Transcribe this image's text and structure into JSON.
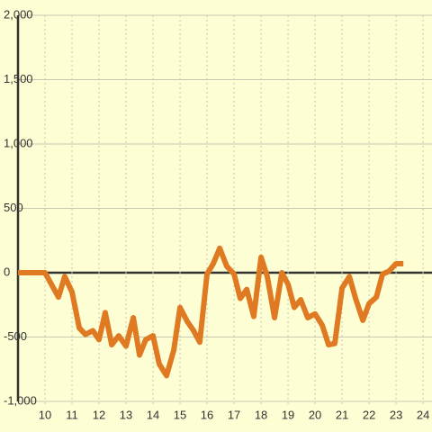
{
  "chart_data": {
    "type": "line",
    "x": [
      9,
      10,
      10.5,
      10.73,
      11,
      11.27,
      11.5,
      11.77,
      12,
      12.23,
      12.47,
      12.73,
      13,
      13.27,
      13.5,
      13.73,
      14,
      14.23,
      14.5,
      14.77,
      15,
      15.27,
      15.5,
      15.73,
      16,
      16.23,
      16.47,
      16.73,
      17,
      17.23,
      17.47,
      17.73,
      18,
      18.23,
      18.5,
      18.77,
      19,
      19.23,
      19.47,
      19.73,
      20,
      20.27,
      20.5,
      20.73,
      21,
      21.27,
      21.5,
      21.77,
      22,
      22.27,
      22.5,
      22.73,
      23,
      23.27
    ],
    "values": [
      0,
      0,
      -190,
      -30,
      -150,
      -430,
      -480,
      -450,
      -520,
      -310,
      -560,
      -490,
      -570,
      -350,
      -640,
      -520,
      -490,
      -710,
      -800,
      -600,
      -270,
      -380,
      -450,
      -540,
      -10,
      70,
      190,
      50,
      -10,
      -200,
      -130,
      -340,
      120,
      -30,
      -350,
      0,
      -90,
      -270,
      -210,
      -350,
      -320,
      -410,
      -560,
      -550,
      -120,
      -30,
      -200,
      -370,
      -240,
      -190,
      -10,
      10,
      70,
      70
    ],
    "color": "#e07a22",
    "xlim": [
      9,
      24.33
    ],
    "xticks": [
      10,
      11,
      12,
      13,
      14,
      15,
      16,
      17,
      18,
      19,
      20,
      21,
      22,
      23,
      24
    ],
    "ylim": [
      -1000,
      2000
    ],
    "yticks": [
      {
        "value": -1000,
        "label": "-1,000"
      },
      -500,
      0,
      500,
      {
        "value": 1000,
        "label": "1,000"
      },
      {
        "value": 1500,
        "label": "1,500"
      },
      {
        "value": 2000,
        "label": "2,000"
      }
    ],
    "grid": true
  }
}
